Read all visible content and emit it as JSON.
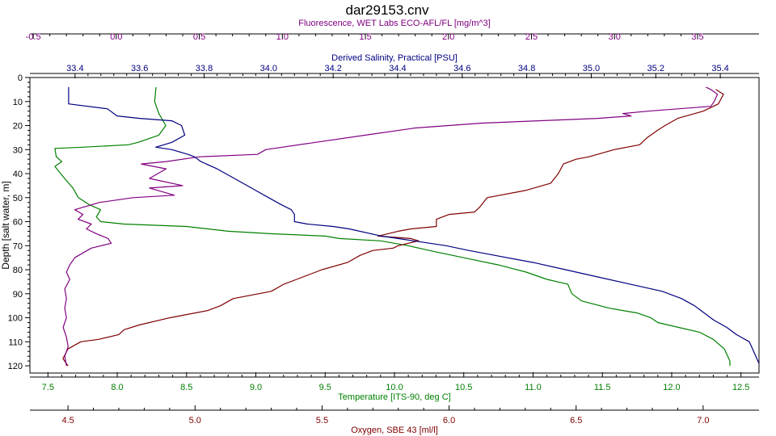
{
  "chart_data": {
    "type": "line",
    "title": "dar29153.cnv",
    "y_axis": {
      "label": "Depth [salt water, m]",
      "range": [
        0,
        123
      ],
      "inverted": true,
      "ticks": [
        0,
        10,
        20,
        30,
        40,
        50,
        60,
        70,
        80,
        90,
        100,
        110,
        120
      ]
    },
    "top_axes": [
      {
        "id": "fluorescence",
        "label": "Fluorescence, WET Labs ECO-AFL/FL [mg/m^3]",
        "color": "#800080",
        "range": [
          -0.52,
          3.87
        ],
        "ticks": [
          -0.5,
          0.0,
          0.5,
          1.0,
          1.5,
          2.0,
          2.5,
          3.0,
          3.5
        ],
        "tick_labels": [
          "-0.5",
          "0.0",
          "0.5",
          "1.0",
          "1.5",
          "2.0",
          "2.5",
          "3.0",
          "3.5"
        ]
      },
      {
        "id": "salinity",
        "label": "Derived Salinity, Practical [PSU]",
        "color": "#000080",
        "range": [
          33.26,
          35.52
        ],
        "ticks": [
          33.4,
          33.6,
          33.8,
          34.0,
          34.2,
          34.4,
          34.6,
          34.8,
          35.0,
          35.2,
          35.4
        ],
        "tick_labels": [
          "33.4",
          "33.6",
          "33.8",
          "34.0",
          "34.2",
          "34.4",
          "34.6",
          "34.8",
          "35.0",
          "35.2",
          "35.4"
        ]
      }
    ],
    "bottom_axes": [
      {
        "id": "temperature",
        "label": "Temperature [ITS-90, deg C]",
        "color": "#008000",
        "range": [
          7.37,
          12.63
        ],
        "ticks": [
          7.5,
          8.0,
          8.5,
          9.0,
          9.5,
          10.0,
          10.5,
          11.0,
          11.5,
          12.0,
          12.5
        ],
        "tick_labels": [
          "7.5",
          "8.0",
          "8.5",
          "9.0",
          "9.5",
          "10.0",
          "10.5",
          "11.0",
          "11.5",
          "12.0",
          "12.5"
        ]
      },
      {
        "id": "oxygen",
        "label": "Oxygen, SBE 43 [ml/l]",
        "color": "#800000",
        "range": [
          4.35,
          7.22
        ],
        "ticks": [
          4.5,
          5.0,
          5.5,
          6.0,
          6.5,
          7.0
        ],
        "tick_labels": [
          "4.5",
          "5.0",
          "5.5",
          "6.0",
          "6.5",
          "7.0"
        ]
      }
    ],
    "grid": false,
    "series": [
      {
        "axis": "temperature",
        "color": "#008000",
        "points": [
          [
            8.28,
            4
          ],
          [
            8.27,
            10
          ],
          [
            8.3,
            15
          ],
          [
            8.35,
            20
          ],
          [
            8.3,
            24
          ],
          [
            8.15,
            27
          ],
          [
            8.08,
            28
          ],
          [
            7.75,
            29
          ],
          [
            7.55,
            29.5
          ],
          [
            7.56,
            33
          ],
          [
            7.6,
            35
          ],
          [
            7.55,
            37
          ],
          [
            7.62,
            42
          ],
          [
            7.68,
            46
          ],
          [
            7.72,
            50
          ],
          [
            7.8,
            53
          ],
          [
            7.88,
            55
          ],
          [
            7.85,
            58
          ],
          [
            7.88,
            60
          ],
          [
            8.05,
            61
          ],
          [
            8.5,
            62
          ],
          [
            8.8,
            64
          ],
          [
            9.1,
            65
          ],
          [
            9.5,
            66
          ],
          [
            9.6,
            67
          ],
          [
            9.9,
            68
          ],
          [
            10.0,
            69
          ],
          [
            10.1,
            70
          ],
          [
            10.25,
            72
          ],
          [
            10.5,
            75
          ],
          [
            10.75,
            78
          ],
          [
            10.95,
            81
          ],
          [
            11.1,
            84
          ],
          [
            11.25,
            86
          ],
          [
            11.28,
            90
          ],
          [
            11.35,
            93
          ],
          [
            11.55,
            96
          ],
          [
            11.75,
            98
          ],
          [
            11.85,
            100
          ],
          [
            11.9,
            102
          ],
          [
            12.05,
            104
          ],
          [
            12.2,
            106
          ],
          [
            12.3,
            109
          ],
          [
            12.38,
            113
          ],
          [
            12.42,
            118
          ],
          [
            12.42,
            120
          ]
        ]
      },
      {
        "axis": "oxygen",
        "color": "#800000",
        "points": [
          [
            7.05,
            5
          ],
          [
            7.08,
            7
          ],
          [
            7.06,
            11
          ],
          [
            7.0,
            14
          ],
          [
            6.9,
            17
          ],
          [
            6.85,
            20
          ],
          [
            6.82,
            22
          ],
          [
            6.78,
            25
          ],
          [
            6.75,
            28
          ],
          [
            6.65,
            30
          ],
          [
            6.55,
            33
          ],
          [
            6.5,
            34
          ],
          [
            6.45,
            36
          ],
          [
            6.43,
            40
          ],
          [
            6.4,
            44
          ],
          [
            6.3,
            47
          ],
          [
            6.15,
            50
          ],
          [
            6.12,
            54
          ],
          [
            6.1,
            56
          ],
          [
            6.0,
            57
          ],
          [
            5.95,
            59
          ],
          [
            5.95,
            62
          ],
          [
            5.85,
            63
          ],
          [
            5.8,
            64
          ],
          [
            5.72,
            66
          ],
          [
            5.85,
            67
          ],
          [
            5.88,
            68
          ],
          [
            5.8,
            70
          ],
          [
            5.78,
            71
          ],
          [
            5.7,
            72
          ],
          [
            5.65,
            74
          ],
          [
            5.6,
            77
          ],
          [
            5.5,
            80
          ],
          [
            5.45,
            82
          ],
          [
            5.4,
            84
          ],
          [
            5.35,
            86
          ],
          [
            5.3,
            89
          ],
          [
            5.15,
            92
          ],
          [
            5.1,
            95
          ],
          [
            5.05,
            97
          ],
          [
            4.9,
            100
          ],
          [
            4.78,
            103
          ],
          [
            4.72,
            105
          ],
          [
            4.7,
            107
          ],
          [
            4.62,
            109
          ],
          [
            4.55,
            110
          ],
          [
            4.5,
            113
          ],
          [
            4.48,
            117
          ],
          [
            4.5,
            120
          ]
        ]
      },
      {
        "axis": "fluorescence",
        "color": "#800080",
        "points": [
          [
            3.55,
            4
          ],
          [
            3.58,
            5
          ],
          [
            3.62,
            7
          ],
          [
            3.6,
            10
          ],
          [
            3.58,
            12
          ],
          [
            3.2,
            14
          ],
          [
            3.05,
            15
          ],
          [
            3.1,
            16
          ],
          [
            2.9,
            17
          ],
          [
            2.2,
            19
          ],
          [
            1.8,
            21
          ],
          [
            1.5,
            24
          ],
          [
            1.2,
            27
          ],
          [
            0.9,
            30
          ],
          [
            0.85,
            32
          ],
          [
            0.5,
            33
          ],
          [
            0.3,
            35
          ],
          [
            0.15,
            36
          ],
          [
            0.3,
            38
          ],
          [
            0.2,
            42
          ],
          [
            0.4,
            45
          ],
          [
            0.2,
            46
          ],
          [
            0.3,
            48
          ],
          [
            0.35,
            49
          ],
          [
            0.1,
            50
          ],
          [
            0.0,
            51
          ],
          [
            -0.1,
            52
          ],
          [
            -0.15,
            53
          ],
          [
            -0.25,
            55
          ],
          [
            -0.2,
            57
          ],
          [
            -0.23,
            59
          ],
          [
            -0.15,
            61
          ],
          [
            -0.18,
            63
          ],
          [
            -0.12,
            65
          ],
          [
            -0.05,
            67
          ],
          [
            -0.03,
            69
          ],
          [
            -0.15,
            71
          ],
          [
            -0.2,
            73
          ],
          [
            -0.25,
            75
          ],
          [
            -0.28,
            78
          ],
          [
            -0.3,
            81
          ],
          [
            -0.28,
            84
          ],
          [
            -0.31,
            88
          ],
          [
            -0.3,
            92
          ],
          [
            -0.31,
            96
          ],
          [
            -0.3,
            100
          ],
          [
            -0.32,
            104
          ],
          [
            -0.3,
            108
          ],
          [
            -0.29,
            112
          ],
          [
            -0.31,
            116
          ],
          [
            -0.3,
            120
          ]
        ]
      },
      {
        "axis": "salinity",
        "color": "#000080",
        "points": [
          [
            33.38,
            4
          ],
          [
            33.38,
            11
          ],
          [
            33.5,
            13
          ],
          [
            33.53,
            16
          ],
          [
            33.6,
            17
          ],
          [
            33.7,
            18
          ],
          [
            33.73,
            20
          ],
          [
            33.74,
            24
          ],
          [
            33.7,
            27
          ],
          [
            33.65,
            29
          ],
          [
            33.7,
            30
          ],
          [
            33.75,
            32
          ],
          [
            33.77,
            33
          ],
          [
            33.79,
            35
          ],
          [
            33.84,
            38
          ],
          [
            33.88,
            41
          ],
          [
            33.92,
            44
          ],
          [
            33.96,
            47
          ],
          [
            34.0,
            50
          ],
          [
            34.04,
            53
          ],
          [
            34.07,
            55
          ],
          [
            34.08,
            57
          ],
          [
            34.08,
            60
          ],
          [
            34.12,
            61
          ],
          [
            34.2,
            62
          ],
          [
            34.25,
            63
          ],
          [
            34.35,
            66
          ],
          [
            34.45,
            68
          ],
          [
            34.55,
            70
          ],
          [
            34.62,
            72
          ],
          [
            34.7,
            74
          ],
          [
            34.82,
            77
          ],
          [
            34.92,
            80
          ],
          [
            35.02,
            83
          ],
          [
            35.12,
            86
          ],
          [
            35.22,
            89
          ],
          [
            35.28,
            92
          ],
          [
            35.32,
            95
          ],
          [
            35.35,
            98
          ],
          [
            35.38,
            101
          ],
          [
            35.42,
            104
          ],
          [
            35.45,
            107
          ],
          [
            35.49,
            110
          ],
          [
            35.5,
            113
          ],
          [
            35.51,
            116
          ],
          [
            35.52,
            119
          ]
        ]
      }
    ]
  }
}
